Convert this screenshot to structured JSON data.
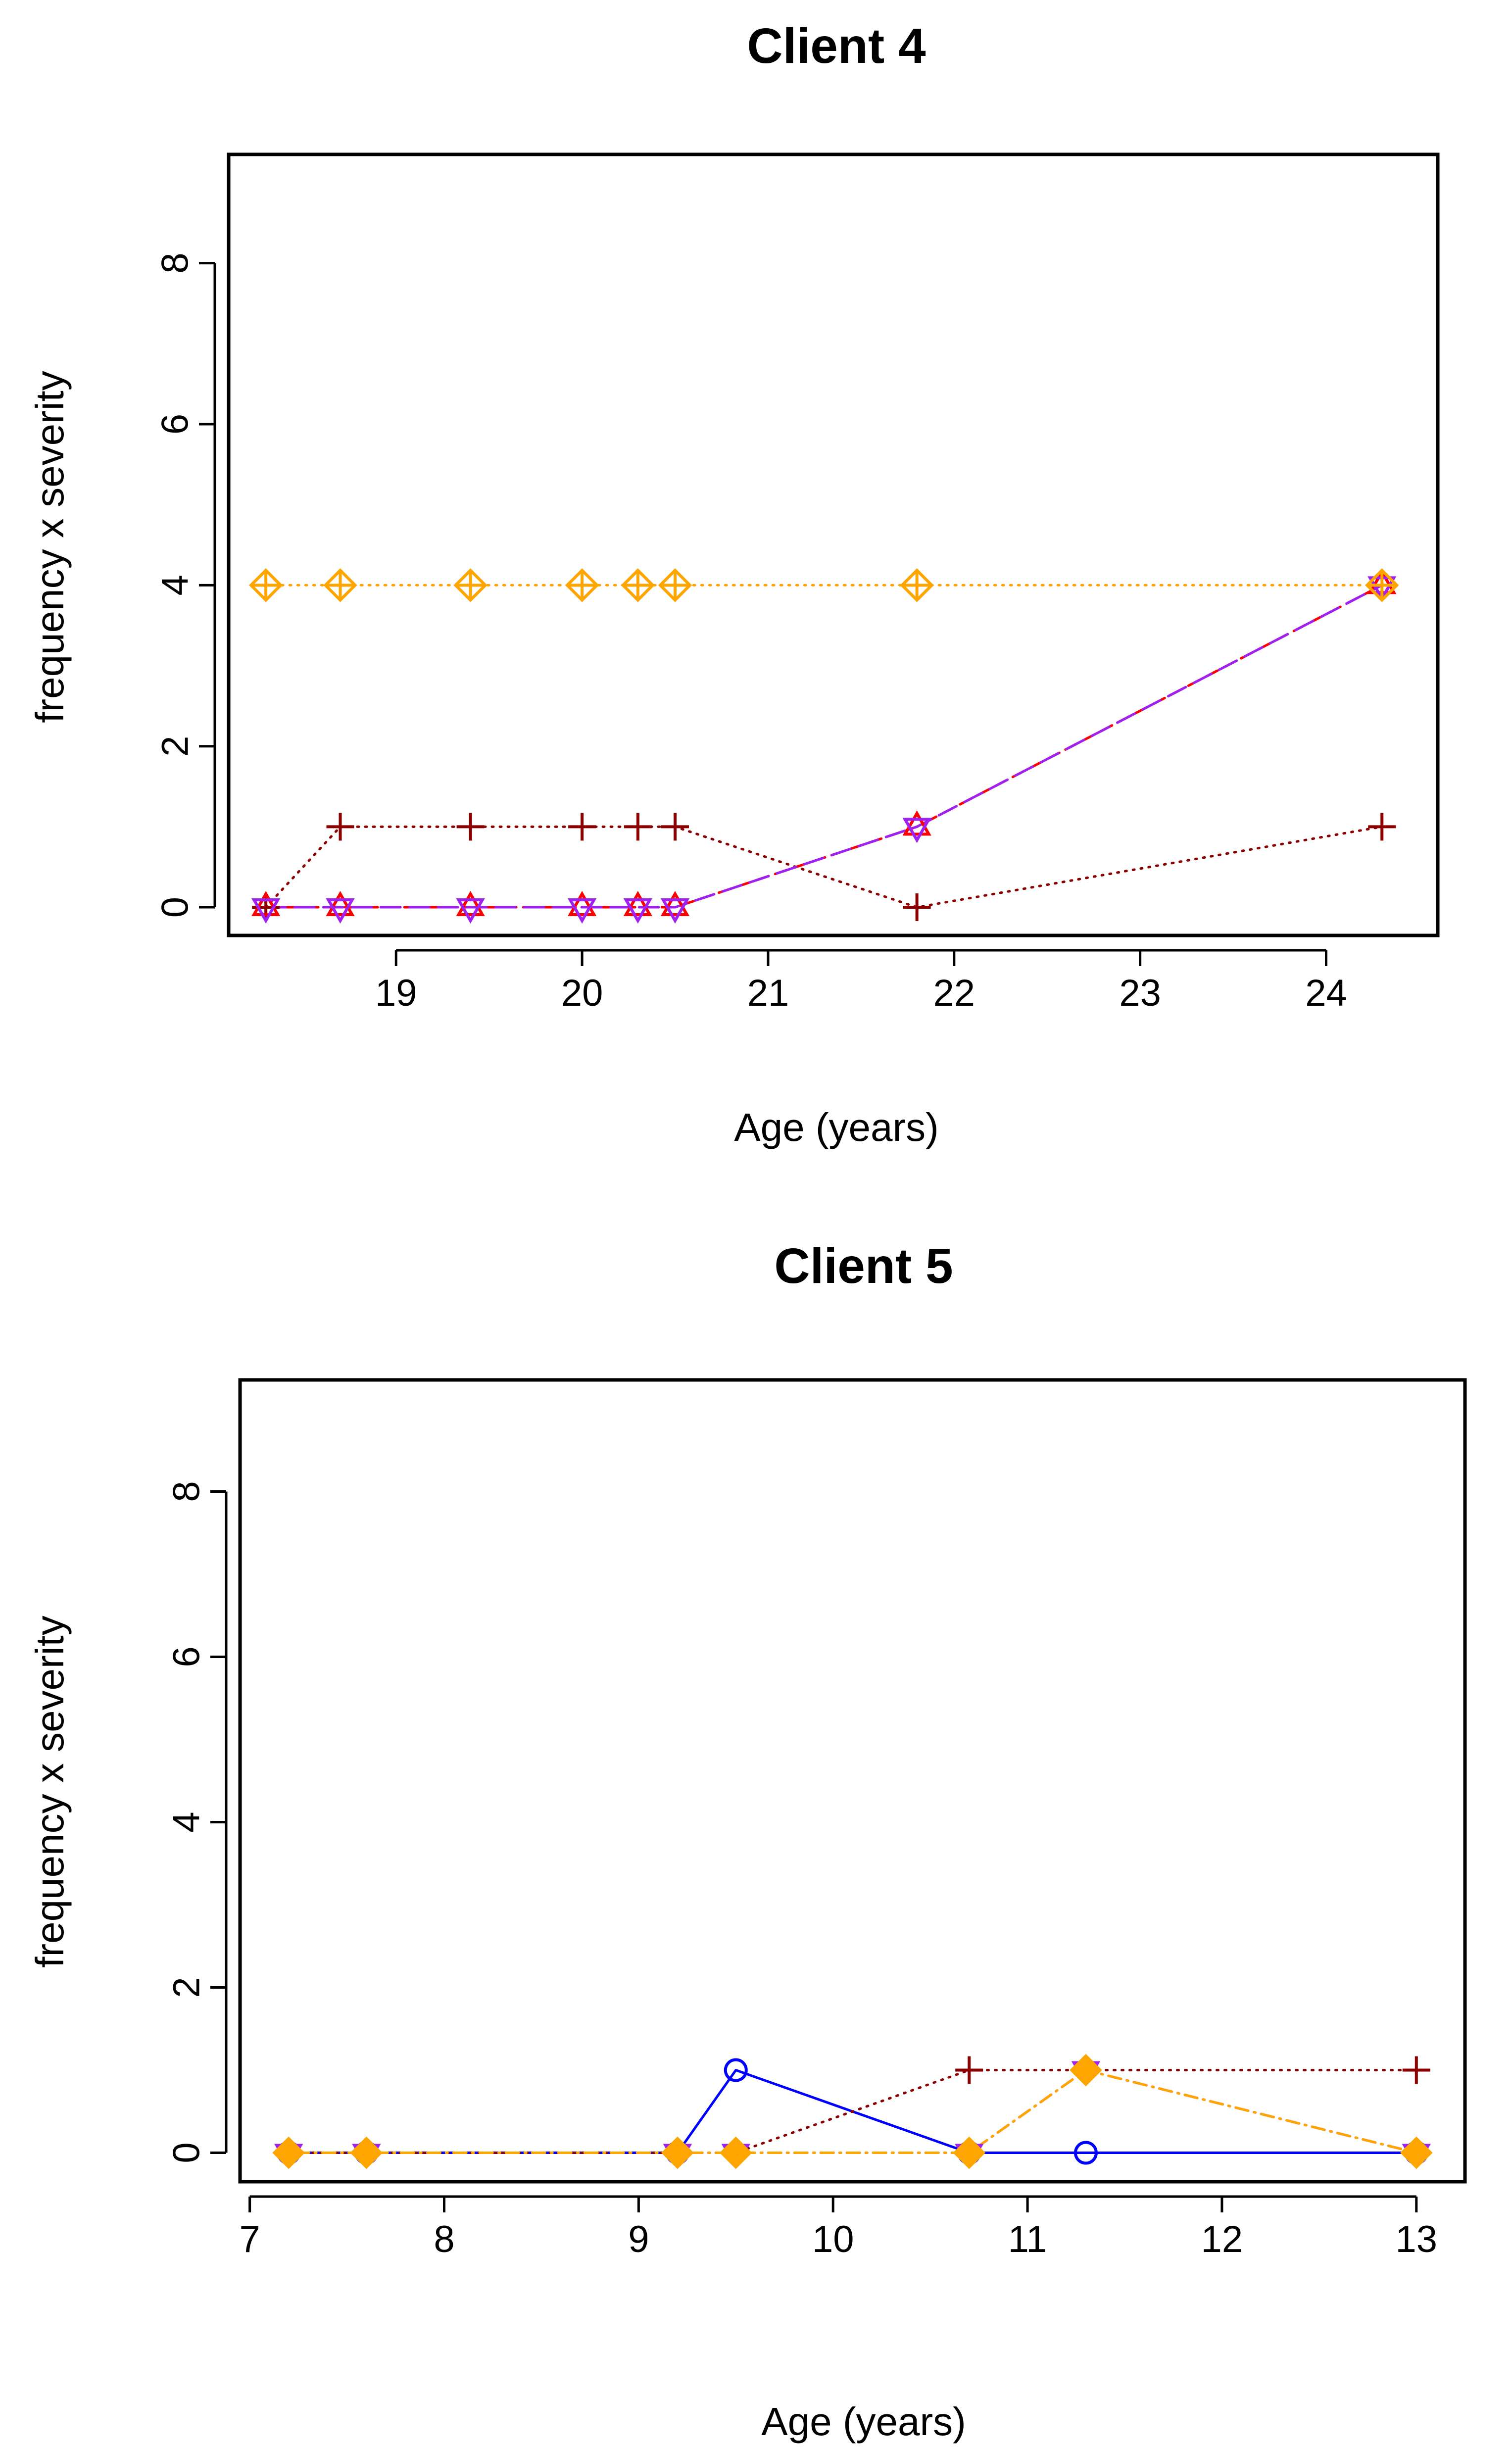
{
  "chart_data": [
    {
      "type": "line",
      "title": "Client 4",
      "xlabel": "Age (years)",
      "ylabel": "frequency x severity",
      "xlim": [
        18.1,
        24.6
      ],
      "ylim": [
        -0.35,
        9.35
      ],
      "xticks": [
        19,
        20,
        21,
        22,
        23,
        24
      ],
      "yticks": [
        0,
        2,
        4,
        6,
        8
      ],
      "grid": false,
      "series": [
        {
          "marker": "plus",
          "line": "dotted",
          "color": "#8b0000",
          "x": [
            18.3,
            18.7,
            19.4,
            20.0,
            20.3,
            20.5,
            21.8,
            24.3
          ],
          "y": [
            0,
            1,
            1,
            1,
            1,
            1,
            0,
            1
          ]
        },
        {
          "marker": "triangle-up",
          "line": "dashed",
          "color": "#ff0000",
          "x": [
            18.3,
            18.7,
            19.4,
            20.0,
            20.3,
            20.5,
            21.8,
            24.3
          ],
          "y": [
            0,
            0,
            0,
            0,
            0,
            0,
            1,
            4
          ]
        },
        {
          "marker": "triangle-down",
          "line": "longdash",
          "color": "#a020f0",
          "x": [
            18.3,
            18.7,
            19.4,
            20.0,
            20.3,
            20.5,
            21.8,
            24.3
          ],
          "y": [
            0,
            0,
            0,
            0,
            0,
            0,
            1,
            4
          ]
        },
        {
          "marker": "diamond-plus",
          "line": "dotted",
          "color": "#ffa500",
          "x": [
            18.3,
            18.7,
            19.4,
            20.0,
            20.3,
            20.5,
            21.8,
            24.3
          ],
          "y": [
            4,
            4,
            4,
            4,
            4,
            4,
            4,
            4
          ]
        }
      ]
    },
    {
      "type": "line",
      "title": "Client 5",
      "xlabel": "Age (years)",
      "ylabel": "frequency x severity",
      "xlim": [
        6.95,
        13.25
      ],
      "ylim": [
        -0.35,
        9.35
      ],
      "xticks": [
        7,
        8,
        9,
        10,
        11,
        12,
        13
      ],
      "yticks": [
        0,
        2,
        4,
        6,
        8
      ],
      "grid": false,
      "series": [
        {
          "marker": "circle",
          "line": "solid",
          "color": "#0000ff",
          "x": [
            7.2,
            7.6,
            9.2,
            9.5,
            10.7,
            11.3,
            13.0
          ],
          "y": [
            0,
            0,
            0,
            1,
            0,
            0,
            0
          ]
        },
        {
          "marker": "plus",
          "line": "dotted",
          "color": "#8b0000",
          "x": [
            7.2,
            7.6,
            9.2,
            9.5,
            10.7,
            11.3,
            13.0
          ],
          "y": [
            0,
            0,
            0,
            0,
            1,
            1,
            1
          ]
        },
        {
          "marker": "triangle-down",
          "line": "dotdash",
          "color": "#a020f0",
          "x": [
            7.2,
            7.6,
            9.2,
            9.5,
            10.7,
            11.3,
            13.0
          ],
          "y": [
            0,
            0,
            0,
            0,
            0,
            1,
            0
          ]
        },
        {
          "marker": "diamond-filled",
          "line": "dotdash",
          "color": "#ffa500",
          "x": [
            7.2,
            7.6,
            9.2,
            9.5,
            10.7,
            11.3,
            13.0
          ],
          "y": [
            0,
            0,
            0,
            0,
            0,
            1,
            0
          ]
        }
      ]
    }
  ]
}
